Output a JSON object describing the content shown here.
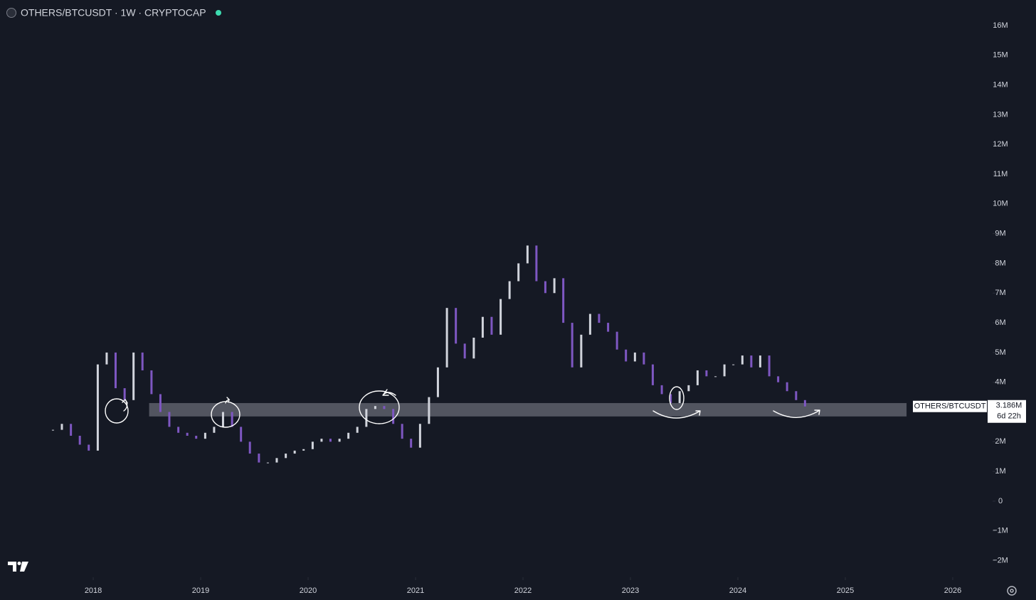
{
  "chart_data": {
    "type": "candlestick",
    "title": "OTHERS/BTCUSDT · 1W · CRYPTOCAP",
    "x": [
      2017.625,
      2017.708,
      2017.792,
      2017.875,
      2017.958,
      2018.042,
      2018.125,
      2018.208,
      2018.292,
      2018.375,
      2018.458,
      2018.542,
      2018.625,
      2018.708,
      2018.792,
      2018.875,
      2018.958,
      2019.042,
      2019.125,
      2019.208,
      2019.292,
      2019.375,
      2019.458,
      2019.542,
      2019.625,
      2019.708,
      2019.792,
      2019.875,
      2019.958,
      2020.042,
      2020.125,
      2020.208,
      2020.292,
      2020.375,
      2020.458,
      2020.542,
      2020.625,
      2020.708,
      2020.792,
      2020.875,
      2020.958,
      2021.042,
      2021.125,
      2021.208,
      2021.292,
      2021.375,
      2021.458,
      2021.542,
      2021.625,
      2021.708,
      2021.792,
      2021.875,
      2021.958,
      2022.042,
      2022.125,
      2022.208,
      2022.292,
      2022.375,
      2022.458,
      2022.542,
      2022.625,
      2022.708,
      2022.792,
      2022.875,
      2022.958,
      2023.042,
      2023.125,
      2023.208,
      2023.292,
      2023.375,
      2023.458,
      2023.542,
      2023.625,
      2023.708,
      2023.792,
      2023.875,
      2023.958,
      2024.042,
      2024.125,
      2024.208,
      2024.292,
      2024.375,
      2024.458,
      2024.542,
      2024.625
    ],
    "close": [
      2.4,
      2.6,
      2.2,
      1.9,
      1.7,
      4.6,
      5.0,
      3.8,
      3.4,
      5.0,
      4.4,
      3.6,
      3.0,
      2.5,
      2.3,
      2.2,
      2.1,
      2.3,
      2.5,
      3.0,
      2.5,
      2.0,
      1.6,
      1.3,
      1.3,
      1.45,
      1.6,
      1.7,
      1.75,
      2.0,
      2.1,
      2.0,
      2.1,
      2.3,
      2.5,
      3.1,
      3.2,
      3.1,
      2.6,
      2.1,
      1.8,
      2.6,
      3.5,
      4.5,
      6.5,
      5.3,
      4.8,
      5.5,
      6.2,
      5.6,
      6.8,
      7.4,
      8.0,
      8.6,
      7.4,
      7.0,
      7.5,
      6.0,
      4.5,
      5.6,
      6.3,
      6.0,
      5.7,
      5.1,
      4.7,
      5.0,
      4.6,
      3.9,
      3.6,
      3.3,
      3.7,
      3.9,
      4.4,
      4.2,
      4.2,
      4.6,
      4.6,
      4.9,
      4.5,
      4.9,
      4.2,
      4.0,
      3.7,
      3.4,
      3.186
    ],
    "up_color": "#d1d4dc",
    "down_color": "#7e57c2",
    "xlim": [
      2017.132,
      2026.371
    ],
    "xticks": [
      2018,
      2019,
      2020,
      2021,
      2022,
      2023,
      2024,
      2025,
      2026
    ],
    "ylim": [
      -2.56,
      16.86
    ],
    "yticks": [
      {
        "value": 16,
        "label": "16M"
      },
      {
        "value": 15,
        "label": "15M"
      },
      {
        "value": 14,
        "label": "14M"
      },
      {
        "value": 13,
        "label": "13M"
      },
      {
        "value": 12,
        "label": "12M"
      },
      {
        "value": 11,
        "label": "11M"
      },
      {
        "value": 10,
        "label": "10M"
      },
      {
        "value": 9,
        "label": "9M"
      },
      {
        "value": 8,
        "label": "8M"
      },
      {
        "value": 7,
        "label": "7M"
      },
      {
        "value": 6,
        "label": "6M"
      },
      {
        "value": 5,
        "label": "5M"
      },
      {
        "value": 4,
        "label": "4M"
      },
      {
        "value": 3,
        "label": "3M"
      },
      {
        "value": 2,
        "label": "2M"
      },
      {
        "value": 1,
        "label": "1M"
      },
      0,
      {
        "value": -1,
        "label": "−1M"
      },
      {
        "value": -2,
        "label": "−2M"
      }
    ],
    "zone": {
      "xlim": [
        2018.52,
        2025.57
      ],
      "ylim": [
        2.85,
        3.3
      ]
    },
    "last_price": {
      "symbol": "OTHERS/BTCUSDT",
      "price": {
        "value": 3.186,
        "label": "3.186M"
      },
      "countdown": "6d 22h"
    }
  }
}
